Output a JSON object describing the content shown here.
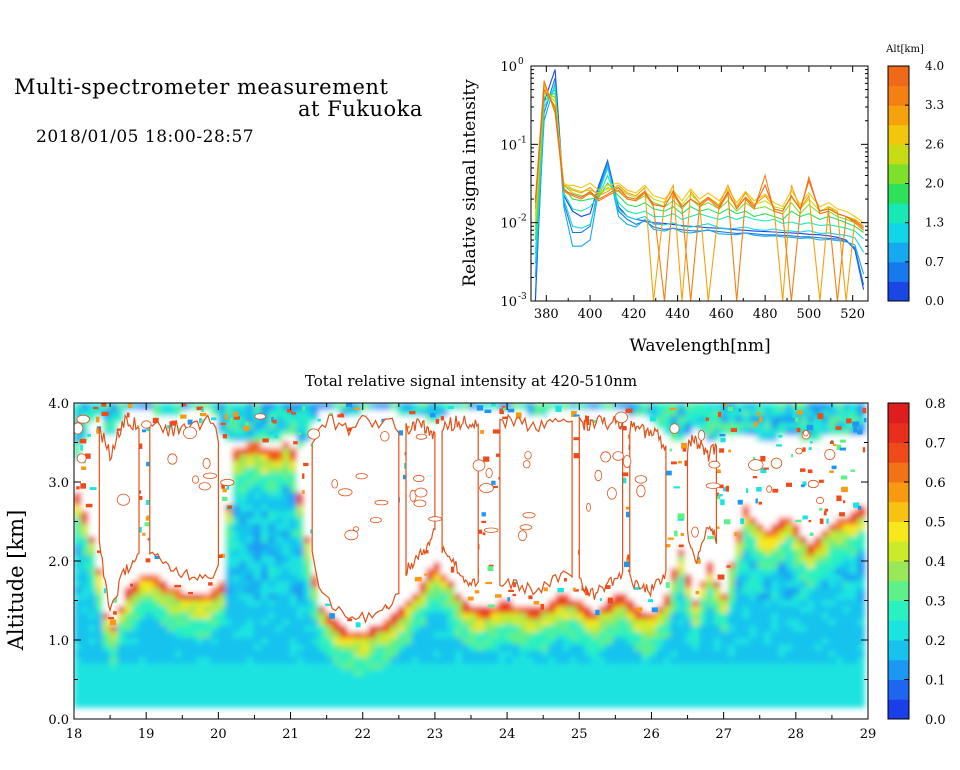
{
  "header": {
    "title_line1": "Multi-spectrometer measurement",
    "title_line2": "at Fukuoka",
    "datetime": "2018/01/05 18:00-28:57"
  },
  "chart_data": [
    {
      "type": "line",
      "xlabel": "Wavelength[nm]",
      "ylabel": "Relative signal intensity",
      "xlim": [
        373,
        527
      ],
      "ylim": [
        0.001,
        1
      ],
      "yscale": "log",
      "xticks": [
        380,
        400,
        420,
        440,
        460,
        480,
        500,
        520
      ],
      "yticks": [
        {
          "value": 1,
          "base": "10",
          "exp": "0"
        },
        {
          "value": 0.1,
          "base": "10",
          "exp": "-1"
        },
        {
          "value": 0.01,
          "base": "10",
          "exp": "-2"
        },
        {
          "value": 0.001,
          "base": "10",
          "exp": "-3"
        }
      ],
      "colorbar": {
        "title": "Alt[km]",
        "ticks": [
          "0.0",
          "0.7",
          "1.3",
          "2.0",
          "2.6",
          "3.3",
          "4.0"
        ],
        "colors": [
          "#1a46e6",
          "#1878ee",
          "#15a9f0",
          "#12d6e8",
          "#17e8b4",
          "#2fe05a",
          "#7de02a",
          "#c8dc16",
          "#f2c60c",
          "#f6a20c",
          "#f47f12",
          "#f0691a"
        ]
      },
      "x": [
        375,
        379,
        384,
        388,
        392,
        396,
        400,
        404,
        408,
        413,
        417,
        421,
        425,
        429,
        434,
        438,
        442,
        446,
        450,
        454,
        459,
        463,
        467,
        471,
        475,
        480,
        484,
        488,
        492,
        496,
        500,
        505,
        509,
        513,
        517,
        521,
        525
      ],
      "series": [
        {
          "color": "#1a46e6",
          "values": [
            0.001,
            0.35,
            0.9,
            0.022,
            0.014,
            0.012,
            0.013,
            0.03,
            0.062,
            0.016,
            0.012,
            0.011,
            0.0105,
            0.01,
            0.0098,
            0.0095,
            0.0092,
            0.009,
            0.0088,
            0.0086,
            0.0085,
            0.0083,
            0.0081,
            0.008,
            0.0078,
            0.0077,
            0.0076,
            0.0075,
            0.0074,
            0.0073,
            0.0071,
            0.007,
            0.0068,
            0.0065,
            0.006,
            0.0045,
            0.0014
          ]
        },
        {
          "color": "#1878ee",
          "values": [
            0.0012,
            0.25,
            0.7,
            0.018,
            0.0075,
            0.0075,
            0.009,
            0.028,
            0.06,
            0.014,
            0.011,
            0.0095,
            0.0105,
            0.0088,
            0.0082,
            0.0085,
            0.0081,
            0.0079,
            0.0078,
            0.008,
            0.0077,
            0.0075,
            0.0073,
            0.0074,
            0.0072,
            0.007,
            0.007,
            0.0069,
            0.0068,
            0.0066,
            0.0066,
            0.0064,
            0.0063,
            0.0062,
            0.0058,
            0.0048,
            0.0016
          ]
        },
        {
          "color": "#15a9f0",
          "values": [
            0.002,
            0.2,
            0.6,
            0.016,
            0.005,
            0.005,
            0.006,
            0.026,
            0.055,
            0.012,
            0.0095,
            0.0088,
            0.011,
            0.0082,
            0.0078,
            0.0085,
            0.0076,
            0.0074,
            0.0077,
            0.0081,
            0.0072,
            0.0071,
            0.007,
            0.0074,
            0.0069,
            0.0067,
            0.0068,
            0.0066,
            0.0065,
            0.0063,
            0.0064,
            0.006,
            0.0061,
            0.0059,
            0.0057,
            0.0052,
            0.0022
          ]
        },
        {
          "color": "#12d6e8",
          "values": [
            0.003,
            0.3,
            0.55,
            0.02,
            0.009,
            0.0085,
            0.0095,
            0.024,
            0.05,
            0.015,
            0.012,
            0.011,
            0.012,
            0.0096,
            0.0094,
            0.0099,
            0.009,
            0.0088,
            0.0092,
            0.0097,
            0.0086,
            0.0084,
            0.0085,
            0.0088,
            0.0082,
            0.008,
            0.0083,
            0.0079,
            0.0078,
            0.0076,
            0.0079,
            0.0073,
            0.0074,
            0.0071,
            0.0069,
            0.0064,
            0.0042
          ]
        },
        {
          "color": "#17e8b4",
          "values": [
            0.004,
            0.35,
            0.5,
            0.024,
            0.015,
            0.014,
            0.016,
            0.022,
            0.04,
            0.018,
            0.014,
            0.013,
            0.014,
            0.012,
            0.012,
            0.013,
            0.011,
            0.012,
            0.013,
            0.012,
            0.011,
            0.012,
            0.011,
            0.012,
            0.011,
            0.0105,
            0.011,
            0.0098,
            0.0102,
            0.0095,
            0.01,
            0.0092,
            0.0094,
            0.009,
            0.0085,
            0.0078,
            0.0062
          ]
        },
        {
          "color": "#2fe05a",
          "values": [
            0.006,
            0.4,
            0.45,
            0.028,
            0.02,
            0.019,
            0.02,
            0.021,
            0.032,
            0.022,
            0.017,
            0.016,
            0.018,
            0.015,
            0.014,
            0.016,
            0.013,
            0.016,
            0.014,
            0.015,
            0.013,
            0.015,
            0.013,
            0.014,
            0.012,
            0.013,
            0.012,
            0.011,
            0.014,
            0.012,
            0.013,
            0.011,
            0.012,
            0.011,
            0.01,
            0.009,
            0.0075
          ]
        },
        {
          "color": "#7de02a",
          "values": [
            0.008,
            0.45,
            0.4,
            0.03,
            0.024,
            0.022,
            0.023,
            0.022,
            0.028,
            0.025,
            0.02,
            0.019,
            0.022,
            0.018,
            0.016,
            0.019,
            0.015,
            0.02,
            0.016,
            0.018,
            0.015,
            0.019,
            0.014,
            0.018,
            0.015,
            0.016,
            0.014,
            0.013,
            0.018,
            0.013,
            0.017,
            0.013,
            0.014,
            0.012,
            0.011,
            0.01,
            0.008
          ]
        },
        {
          "color": "#c8dc16",
          "values": [
            0.01,
            0.5,
            0.35,
            0.032,
            0.027,
            0.025,
            0.026,
            0.024,
            0.027,
            0.028,
            0.023,
            0.021,
            0.025,
            0.02,
            0.018,
            0.022,
            0.017,
            0.023,
            0.018,
            0.021,
            0.017,
            0.022,
            0.016,
            0.021,
            0.017,
            0.019,
            0.016,
            0.015,
            0.021,
            0.015,
            0.02,
            0.014,
            0.016,
            0.013,
            0.012,
            0.011,
            0.009
          ]
        },
        {
          "color": "#f2c60c",
          "values": [
            0.012,
            0.55,
            0.3,
            0.03,
            0.03,
            0.028,
            0.032,
            0.026,
            0.03,
            0.032,
            0.026,
            0.024,
            0.03,
            0.022,
            0.02,
            0.026,
            0.019,
            0.027,
            0.02,
            0.024,
            0.019,
            0.027,
            0.018,
            0.025,
            0.019,
            0.023,
            0.018,
            0.016,
            0.026,
            0.017,
            0.024,
            0.016,
            0.018,
            0.015,
            0.014,
            0.012,
            0.01
          ]
        },
        {
          "color": "#f6a20c",
          "values": [
            0.015,
            0.6,
            0.28,
            0.03,
            0.026,
            0.024,
            0.028,
            0.022,
            0.025,
            0.03,
            0.024,
            0.022,
            0.028,
            0.001,
            0.018,
            0.03,
            0.001,
            0.025,
            0.018,
            0.001,
            0.017,
            0.03,
            0.016,
            0.024,
            0.017,
            0.022,
            0.016,
            0.001,
            0.03,
            0.015,
            0.022,
            0.001,
            0.016,
            0.014,
            0.001,
            0.011,
            0.009
          ]
        },
        {
          "color": "#f47f12",
          "values": [
            0.02,
            0.65,
            0.25,
            0.025,
            0.022,
            0.02,
            0.024,
            0.019,
            0.022,
            0.026,
            0.02,
            0.019,
            0.024,
            0.016,
            0.001,
            0.024,
            0.015,
            0.001,
            0.016,
            0.02,
            0.015,
            0.024,
            0.001,
            0.02,
            0.015,
            0.04,
            0.014,
            0.013,
            0.001,
            0.014,
            0.038,
            0.013,
            0.014,
            0.001,
            0.012,
            0.01,
            0.008
          ]
        },
        {
          "color": "#f0691a",
          "values": [
            0.018,
            0.5,
            0.3,
            0.026,
            0.023,
            0.021,
            0.025,
            0.02,
            0.023,
            0.028,
            0.021,
            0.02,
            0.025,
            0.017,
            0.016,
            0.025,
            0.016,
            0.02,
            0.017,
            0.021,
            0.016,
            0.025,
            0.015,
            0.021,
            0.016,
            0.03,
            0.015,
            0.014,
            0.022,
            0.015,
            0.034,
            0.014,
            0.015,
            0.013,
            0.012,
            0.0105,
            0.0085
          ]
        }
      ]
    },
    {
      "type": "heatmap",
      "title": "Total relative signal intensity at 420-510nm",
      "ylabel": "Altitude [km]",
      "xlim": [
        18,
        29
      ],
      "ylim": [
        0,
        4
      ],
      "xticks": [
        "18",
        "19",
        "20",
        "21",
        "22",
        "23",
        "24",
        "25",
        "26",
        "27",
        "28",
        "29"
      ],
      "yticks": [
        "0.0",
        "1.0",
        "2.0",
        "3.0",
        "4.0"
      ],
      "data_xrange": [
        18,
        28.95
      ],
      "data_yrange": [
        0.15,
        4.0
      ],
      "cloud_base_km": {
        "x": [
          18.0,
          18.3,
          18.5,
          18.7,
          19.0,
          19.3,
          19.6,
          19.9,
          20.05,
          20.2,
          20.5,
          20.8,
          21.0,
          21.2,
          21.4,
          21.6,
          21.8,
          22.0,
          22.2,
          22.4,
          22.6,
          22.8,
          23.0,
          23.2,
          23.4,
          23.6,
          23.8,
          24.0,
          24.2,
          24.4,
          24.6,
          24.8,
          25.0,
          25.2,
          25.4,
          25.6,
          25.8,
          26.0,
          26.2,
          26.4,
          26.6,
          26.8,
          27.0,
          27.3,
          27.6,
          27.9,
          28.2,
          28.5,
          28.95
        ],
        "values": [
          3.0,
          2.2,
          1.1,
          1.6,
          1.9,
          1.7,
          1.6,
          1.6,
          1.75,
          3.4,
          3.5,
          3.4,
          3.6,
          2.5,
          1.5,
          1.25,
          1.15,
          1.1,
          1.2,
          1.3,
          1.5,
          1.7,
          2.0,
          1.8,
          1.5,
          1.4,
          1.45,
          1.5,
          1.45,
          1.4,
          1.5,
          1.6,
          1.5,
          1.35,
          1.5,
          1.6,
          1.4,
          1.35,
          1.55,
          2.2,
          1.5,
          2.0,
          1.6,
          2.7,
          2.4,
          2.6,
          2.2,
          2.5,
          2.7
        ]
      },
      "cloud_top_km": {
        "x": [
          18.0,
          18.3,
          18.5,
          18.7,
          19.0,
          19.3,
          19.6,
          19.9,
          20.05,
          20.2,
          20.5,
          20.8,
          21.0,
          21.2,
          21.4,
          21.6,
          21.8,
          22.0,
          22.2,
          22.4,
          22.6,
          22.8,
          23.0,
          23.2,
          23.4,
          23.6,
          23.8,
          24.0,
          24.2,
          24.4,
          24.6,
          24.8,
          25.0,
          25.2,
          25.4,
          25.6,
          25.8,
          26.0,
          26.2,
          26.4,
          26.6,
          26.8,
          27.0,
          27.3,
          27.6,
          27.9,
          28.2,
          28.5,
          28.95
        ],
        "values": [
          3.2,
          3.9,
          3.5,
          3.9,
          3.9,
          3.8,
          3.9,
          3.9,
          3.6,
          3.5,
          3.5,
          3.5,
          3.6,
          3.4,
          3.9,
          3.9,
          3.8,
          3.9,
          3.9,
          3.9,
          3.8,
          3.9,
          3.7,
          3.9,
          3.9,
          3.9,
          3.9,
          3.9,
          3.9,
          3.8,
          3.9,
          3.9,
          3.9,
          3.9,
          3.9,
          3.9,
          3.8,
          3.8,
          3.6,
          3.5,
          3.7,
          3.5,
          3.6,
          3.6,
          3.5,
          3.6,
          3.5,
          3.6,
          3.6
        ]
      },
      "colorbar": {
        "ticks": [
          "0.0",
          "0.1",
          "0.2",
          "0.3",
          "0.4",
          "0.5",
          "0.6",
          "0.7",
          "0.8"
        ],
        "colors": [
          "#1a3ee8",
          "#1e66f0",
          "#1c98f4",
          "#17c3ee",
          "#1ae3e0",
          "#2bf0c0",
          "#5ef08a",
          "#9ae85a",
          "#ccea2c",
          "#f6e81c",
          "#f8c214",
          "#f89a10",
          "#f47216",
          "#ee4a1a",
          "#e82e1c",
          "#de1e1e"
        ]
      }
    }
  ]
}
